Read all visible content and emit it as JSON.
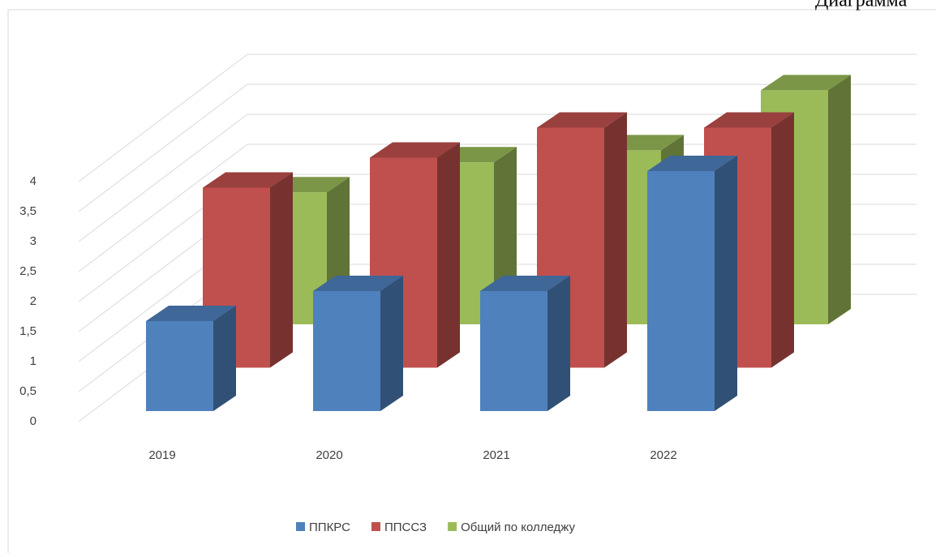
{
  "chart_data": {
    "type": "bar3d",
    "title": "Диаграмма",
    "categories": [
      "2019",
      "2020",
      "2021",
      "2022"
    ],
    "series": [
      {
        "name": "ППКРС",
        "color": "#4f81bd",
        "values": [
          1.5,
          2,
          2,
          4
        ]
      },
      {
        "name": "ППССЗ",
        "color": "#c0504d",
        "values": [
          3,
          3.5,
          4,
          4
        ]
      },
      {
        "name": "Общий по колледжу",
        "color": "#9bbb59",
        "values": [
          2.2,
          2.7,
          2.9,
          3.9
        ]
      }
    ],
    "ylim": [
      0,
      4
    ],
    "yticks": [
      0,
      {
        "value": 0.5,
        "label": "0,5"
      },
      1,
      {
        "value": 1.5,
        "label": "1,5"
      },
      2,
      {
        "value": 2.5,
        "label": "2,5"
      },
      3,
      {
        "value": 3.5,
        "label": "3,5"
      },
      4
    ],
    "grid": true,
    "legend": "bottom"
  }
}
